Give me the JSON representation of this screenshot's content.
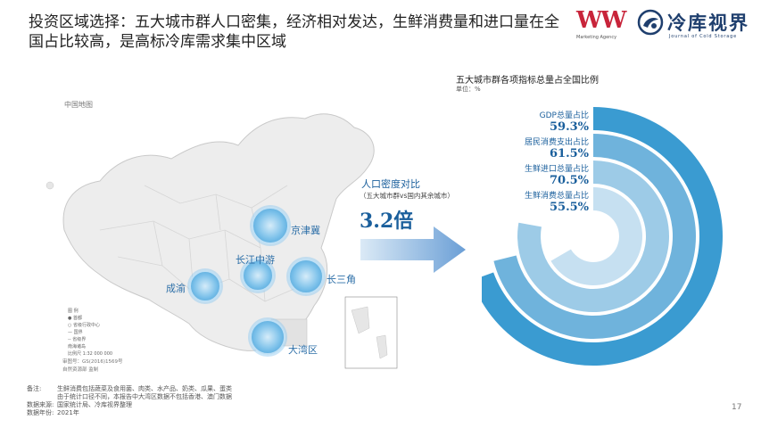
{
  "header": {
    "title": "投资区域选择：五大城市群人口密集，经济相对发达，生鲜消费量和进口量在全国占比较高，是高标冷库需求集中区域"
  },
  "logos": {
    "marketing": {
      "mark": "WW",
      "sub": "Marketing Agency",
      "color": "#c8243a"
    },
    "journal": {
      "name": "冷库视界",
      "en": "Journal of Cold Storage",
      "color": "#1f3f6e"
    }
  },
  "map": {
    "title": "中国地图",
    "legend_lines": [
      "图 例",
      "● 首都",
      "○ 省级行政中心",
      "— 国界",
      "-- 省级界",
      "南海诸岛",
      "比例尺 1:32 000 000"
    ],
    "credit_lines": [
      "审图号：GS(2016)1569号",
      "自然资源部 监制"
    ],
    "cities": [
      "京津冀",
      "长江中游",
      "长三角",
      "成渝",
      "大湾区"
    ]
  },
  "density": {
    "label": "人口密度对比",
    "sub": "（五大城市群vs国内其余城市）",
    "value": "3.2倍"
  },
  "chart_data": {
    "type": "radial-bar",
    "title": "五大城市群各项指标总量占全国比例",
    "unit": "单位：%",
    "categories": [
      "GDP总量占比",
      "居民消费支出占比",
      "生鲜进口总量占比",
      "生鲜消费总量占比"
    ],
    "values": [
      59.3,
      61.5,
      70.5,
      55.5
    ],
    "value_labels": [
      "59.3%",
      "61.5%",
      "70.5%",
      "55.5%"
    ],
    "colors": [
      "#3a9bd1",
      "#6fb3dc",
      "#9dcbe7",
      "#c6e0f1"
    ],
    "max": 100
  },
  "notes": {
    "rows": [
      {
        "k": "备注:",
        "v": "生鲜消费包括蔬菜及食用菌、肉类、水产品、奶类、瓜果、蛋类"
      },
      {
        "k": "",
        "v": "由于统计口径不同，本报告中大湾区数据不包括香港、澳门数据"
      },
      {
        "k": "数据来源:",
        "v": "国家统计局、冷库视界整理"
      },
      {
        "k": "数据年份:",
        "v": "2021年"
      }
    ]
  },
  "page": {
    "number": "17"
  }
}
